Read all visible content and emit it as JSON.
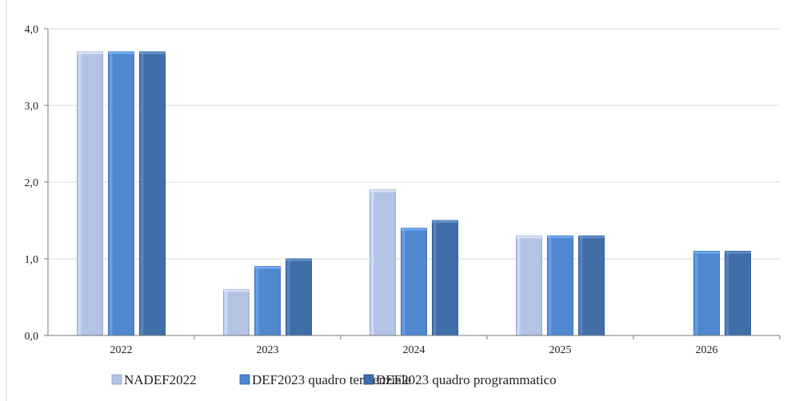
{
  "chart_data": {
    "type": "bar",
    "categories": [
      "2022",
      "2023",
      "2024",
      "2025",
      "2026"
    ],
    "series": [
      {
        "name": "NADEF2022",
        "values": [
          3.7,
          0.6,
          1.9,
          1.3,
          null
        ],
        "color": "#b4c3e3"
      },
      {
        "name": "DEF2023 quadro tendenziale",
        "values": [
          3.7,
          0.9,
          1.4,
          1.3,
          1.1
        ],
        "color": "#4f88cf"
      },
      {
        "name": "DEF2023 quadro programmatico",
        "values": [
          3.7,
          1.0,
          1.5,
          1.3,
          1.1
        ],
        "color": "#3f6ea9"
      }
    ],
    "yticks": [
      "0,0",
      "1,0",
      "2,0",
      "3,0",
      "4,0"
    ],
    "ylim": [
      0,
      4
    ],
    "grid": true,
    "legend": "bottom"
  }
}
